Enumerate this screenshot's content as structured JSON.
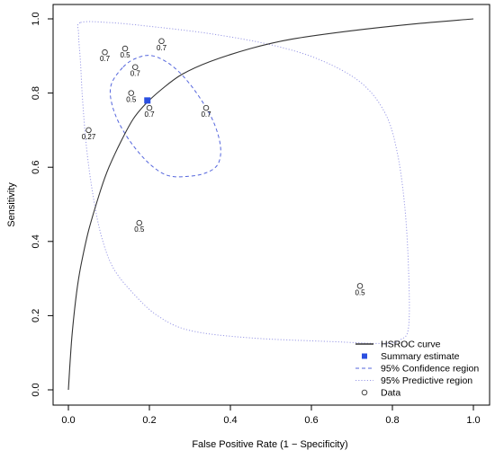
{
  "chart_data": {
    "type": "scatter",
    "title": "",
    "xlabel": "False Positive Rate (1 − Specificity)",
    "ylabel": "Sensitivity",
    "xlim": [
      0,
      1
    ],
    "ylim": [
      0,
      1
    ],
    "xticks": [
      "0.0",
      "0.2",
      "0.4",
      "0.6",
      "0.8",
      "1.0"
    ],
    "yticks": [
      "0.0",
      "0.2",
      "0.4",
      "0.6",
      "0.8",
      "1.0"
    ],
    "grid": false,
    "legend_position": "bottom-right",
    "legend": [
      {
        "label": "HSROC curve",
        "style": "solid-line"
      },
      {
        "label": "Summary estimate",
        "style": "filled-square"
      },
      {
        "label": "95% Confidence region",
        "style": "dashed-line"
      },
      {
        "label": "95% Predictive region",
        "style": "dotted-line"
      },
      {
        "label": "Data",
        "style": "open-circle"
      }
    ],
    "colors": {
      "hsroc": "#333333",
      "summary": "#2a4fe0",
      "confidence": "#5566dd",
      "predictive": "#9a9ae6",
      "data": "#333333"
    },
    "points": [
      {
        "x": 0.09,
        "y": 0.91,
        "label": "0.7"
      },
      {
        "x": 0.14,
        "y": 0.92,
        "label": "0.5"
      },
      {
        "x": 0.23,
        "y": 0.94,
        "label": "0.7"
      },
      {
        "x": 0.165,
        "y": 0.87,
        "label": "0.7"
      },
      {
        "x": 0.155,
        "y": 0.8,
        "label": "0.5"
      },
      {
        "x": 0.2,
        "y": 0.76,
        "label": "0.7"
      },
      {
        "x": 0.34,
        "y": 0.76,
        "label": "0.7"
      },
      {
        "x": 0.05,
        "y": 0.7,
        "label": "0.27"
      },
      {
        "x": 0.175,
        "y": 0.45,
        "label": "0.5"
      },
      {
        "x": 0.72,
        "y": 0.28,
        "label": "0.5"
      }
    ],
    "summary_estimate": {
      "x": 0.195,
      "y": 0.78
    },
    "hsroc_curve": [
      [
        0.0,
        0.0
      ],
      [
        0.005,
        0.09
      ],
      [
        0.01,
        0.16
      ],
      [
        0.02,
        0.26
      ],
      [
        0.03,
        0.33
      ],
      [
        0.05,
        0.43
      ],
      [
        0.08,
        0.54
      ],
      [
        0.1,
        0.6
      ],
      [
        0.13,
        0.67
      ],
      [
        0.16,
        0.73
      ],
      [
        0.19,
        0.77
      ],
      [
        0.23,
        0.81
      ],
      [
        0.28,
        0.85
      ],
      [
        0.35,
        0.885
      ],
      [
        0.45,
        0.92
      ],
      [
        0.55,
        0.945
      ],
      [
        0.7,
        0.968
      ],
      [
        0.85,
        0.986
      ],
      [
        1.0,
        1.0
      ]
    ],
    "confidence_region": [
      [
        0.135,
        0.87
      ],
      [
        0.17,
        0.895
      ],
      [
        0.21,
        0.9
      ],
      [
        0.26,
        0.87
      ],
      [
        0.31,
        0.81
      ],
      [
        0.355,
        0.73
      ],
      [
        0.375,
        0.66
      ],
      [
        0.37,
        0.61
      ],
      [
        0.34,
        0.585
      ],
      [
        0.29,
        0.575
      ],
      [
        0.24,
        0.58
      ],
      [
        0.19,
        0.62
      ],
      [
        0.14,
        0.69
      ],
      [
        0.11,
        0.76
      ],
      [
        0.105,
        0.82
      ]
    ],
    "predictive_region": [
      [
        0.03,
        0.99
      ],
      [
        0.1,
        0.99
      ],
      [
        0.2,
        0.98
      ],
      [
        0.35,
        0.96
      ],
      [
        0.5,
        0.93
      ],
      [
        0.62,
        0.89
      ],
      [
        0.72,
        0.83
      ],
      [
        0.78,
        0.75
      ],
      [
        0.81,
        0.65
      ],
      [
        0.83,
        0.5
      ],
      [
        0.84,
        0.32
      ],
      [
        0.84,
        0.17
      ],
      [
        0.82,
        0.135
      ],
      [
        0.78,
        0.125
      ],
      [
        0.65,
        0.13
      ],
      [
        0.45,
        0.14
      ],
      [
        0.3,
        0.16
      ],
      [
        0.22,
        0.2
      ],
      [
        0.16,
        0.26
      ],
      [
        0.11,
        0.33
      ],
      [
        0.08,
        0.42
      ],
      [
        0.06,
        0.53
      ],
      [
        0.045,
        0.65
      ],
      [
        0.035,
        0.78
      ],
      [
        0.03,
        0.88
      ],
      [
        0.025,
        0.96
      ]
    ]
  }
}
